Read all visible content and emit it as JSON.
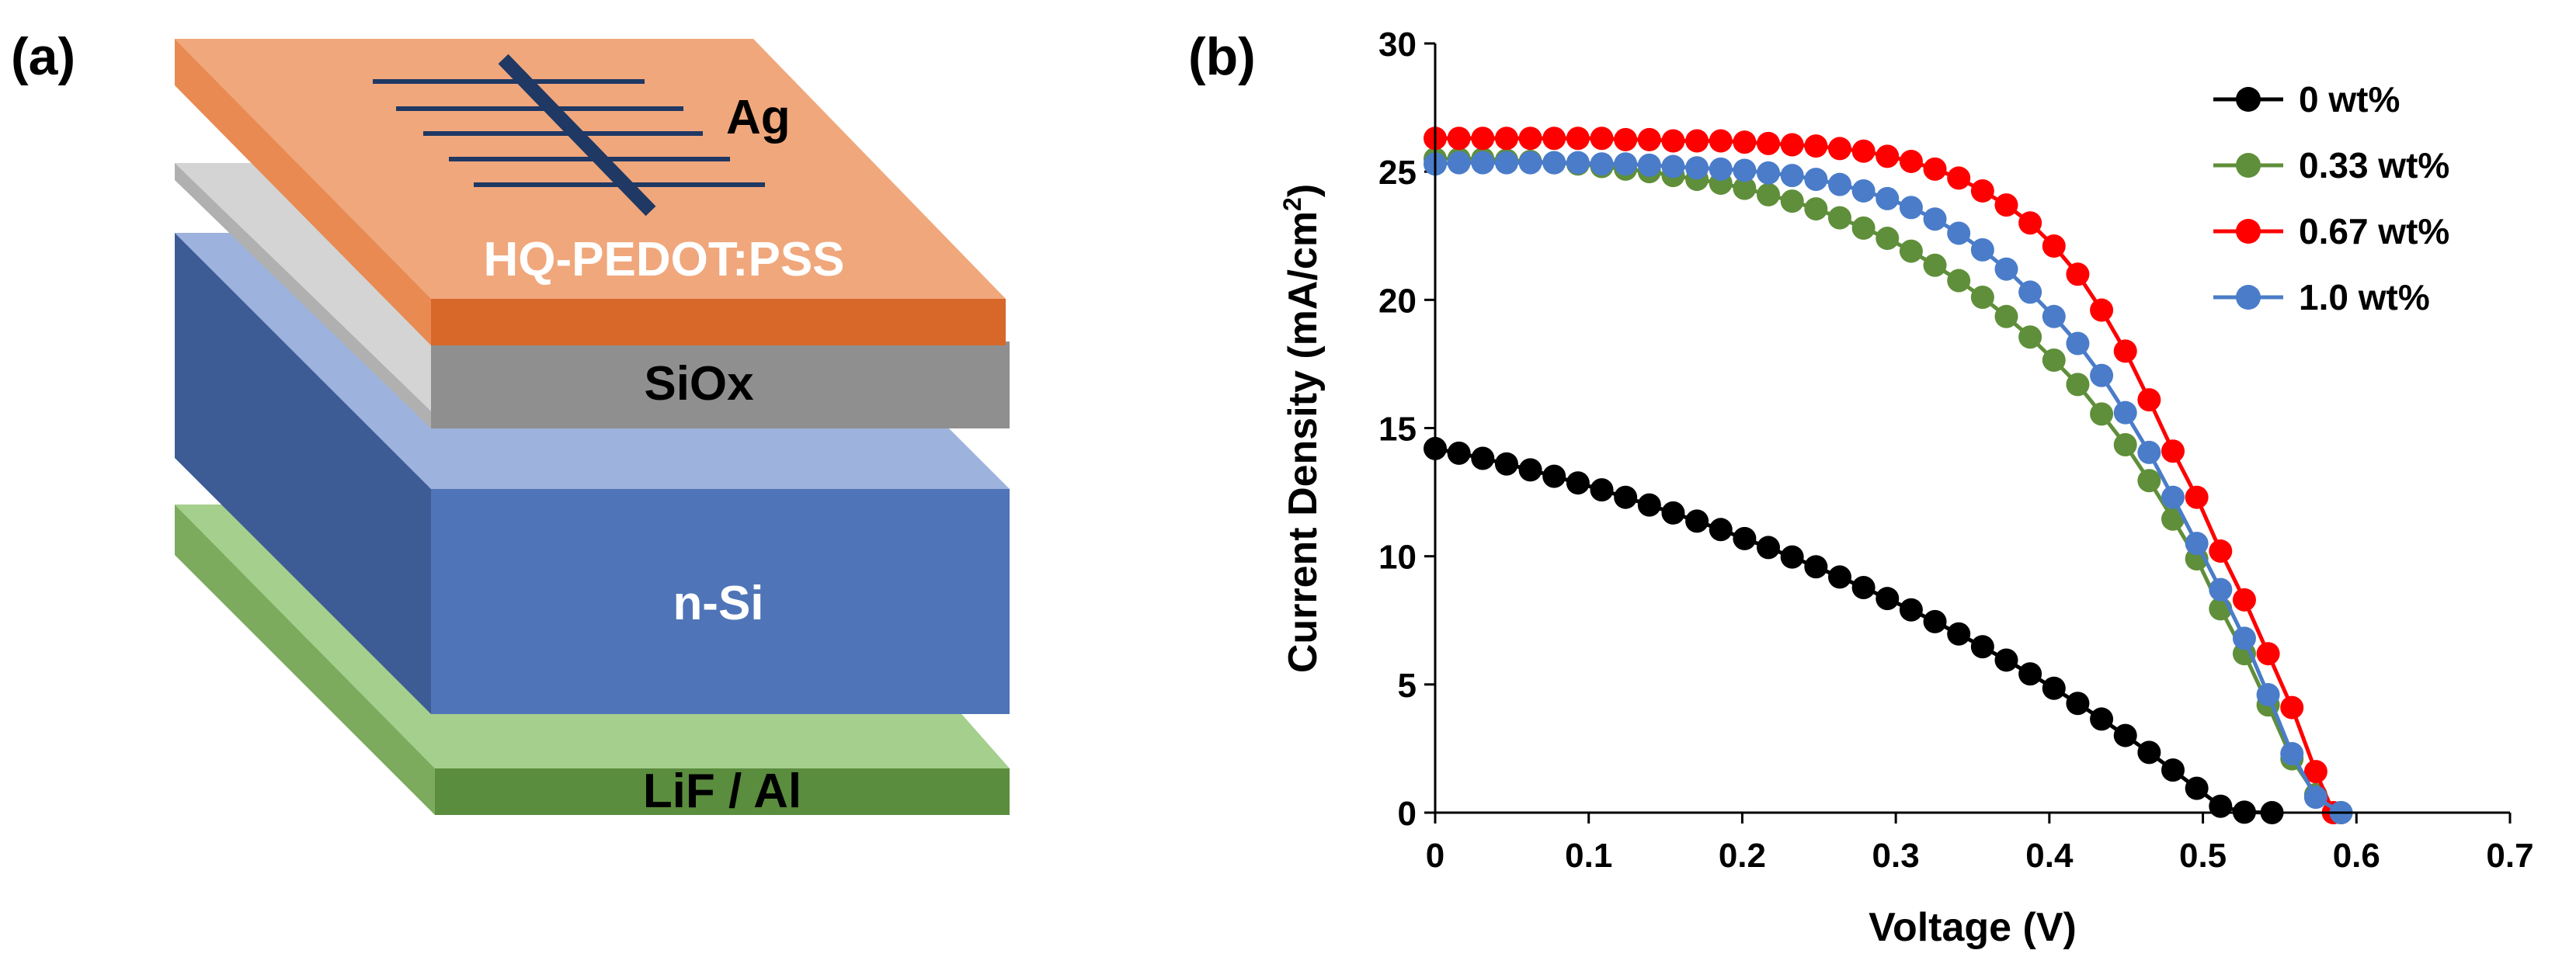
{
  "panels": {
    "a": {
      "label": "(a)"
    },
    "b": {
      "label": "(b)"
    }
  },
  "stack": {
    "layers": [
      {
        "name": "LiF / Al",
        "colors": {
          "front": "#5a8d3e",
          "top": "#a5cf8c",
          "side": "#7cab5d"
        }
      },
      {
        "name": "n-Si",
        "colors": {
          "front": "#4f74b8",
          "top": "#9db3dd",
          "side": "#3d5c96"
        }
      },
      {
        "name": "SiOx",
        "colors": {
          "front": "#8f8f8f",
          "top": "#d4d4d4",
          "side": "#b0b0b0"
        }
      },
      {
        "name": "HQ-PEDOT:PSS",
        "colors": {
          "front": "#d8682a",
          "top": "#f0a77c",
          "side": "#e88a52"
        }
      }
    ],
    "electrode": {
      "label": "Ag",
      "color": "#1f3864"
    }
  },
  "chart_data": {
    "type": "line",
    "title": "",
    "xlabel": "Voltage (V)",
    "ylabel_main": "Current Density (mA/cm",
    "ylabel_sup": "2",
    "ylabel_close": ")",
    "xlim": [
      0,
      0.7
    ],
    "ylim": [
      0,
      30
    ],
    "xticks": [
      "0",
      "0.1",
      "0.2",
      "0.3",
      "0.4",
      "0.5",
      "0.6",
      "0.7"
    ],
    "yticks": [
      "0",
      "5",
      "10",
      "15",
      "20",
      "25",
      "30"
    ],
    "grid": false,
    "legend_position": "top-right",
    "series": [
      {
        "name": "0 wt%",
        "color": "#000000",
        "x": [
          0,
          0.0155,
          0.031,
          0.0465,
          0.062,
          0.0775,
          0.093,
          0.1085,
          0.124,
          0.1395,
          0.155,
          0.1705,
          0.186,
          0.2015,
          0.217,
          0.2325,
          0.248,
          0.2635,
          0.279,
          0.2945,
          0.31,
          0.3255,
          0.341,
          0.3565,
          0.372,
          0.3875,
          0.403,
          0.4185,
          0.434,
          0.4495,
          0.465,
          0.4805,
          0.496,
          0.5115,
          0.527,
          0.545
        ],
        "y": [
          14.2,
          14.02,
          13.82,
          13.6,
          13.37,
          13.12,
          12.86,
          12.59,
          12.3,
          12,
          11.69,
          11.37,
          11.04,
          10.69,
          10.34,
          9.97,
          9.59,
          9.19,
          8.78,
          8.35,
          7.91,
          7.45,
          6.97,
          6.47,
          5.95,
          5.41,
          4.85,
          4.26,
          3.65,
          3.01,
          2.35,
          1.66,
          0.95,
          0.25,
          0.02,
          0
        ]
      },
      {
        "name": "0.33 wt%",
        "color": "#5f8f3a",
        "x": [
          0,
          0.0155,
          0.031,
          0.0465,
          0.062,
          0.0775,
          0.093,
          0.1085,
          0.124,
          0.1395,
          0.155,
          0.1705,
          0.186,
          0.2015,
          0.217,
          0.2325,
          0.248,
          0.2635,
          0.279,
          0.2945,
          0.31,
          0.3255,
          0.341,
          0.3565,
          0.372,
          0.3875,
          0.403,
          0.4185,
          0.434,
          0.4495,
          0.465,
          0.4805,
          0.496,
          0.5115,
          0.527,
          0.5425,
          0.558,
          0.5735,
          0.59
        ],
        "y": [
          25.5,
          25.5,
          25.5,
          25.45,
          25.4,
          25.35,
          25.3,
          25.2,
          25.1,
          25,
          24.85,
          24.7,
          24.55,
          24.35,
          24.1,
          23.85,
          23.55,
          23.2,
          22.8,
          22.4,
          21.9,
          21.35,
          20.75,
          20.1,
          19.35,
          18.55,
          17.65,
          16.7,
          15.55,
          14.35,
          12.95,
          11.45,
          9.9,
          7.95,
          6.2,
          4.2,
          2.1,
          0.7,
          0
        ]
      },
      {
        "name": "0.67 wt%",
        "color": "#ff0000",
        "x": [
          0,
          0.0155,
          0.031,
          0.0465,
          0.062,
          0.0775,
          0.093,
          0.1085,
          0.124,
          0.1395,
          0.155,
          0.1705,
          0.186,
          0.2015,
          0.217,
          0.2325,
          0.248,
          0.2635,
          0.279,
          0.2945,
          0.31,
          0.3255,
          0.341,
          0.3565,
          0.372,
          0.3875,
          0.403,
          0.4185,
          0.434,
          0.4495,
          0.465,
          0.4805,
          0.496,
          0.5115,
          0.527,
          0.5425,
          0.558,
          0.5735,
          0.585
        ],
        "y": [
          26.3,
          26.3,
          26.3,
          26.3,
          26.3,
          26.3,
          26.3,
          26.3,
          26.25,
          26.25,
          26.2,
          26.2,
          26.2,
          26.15,
          26.1,
          26.05,
          26,
          25.9,
          25.8,
          25.6,
          25.4,
          25.1,
          24.75,
          24.25,
          23.7,
          23,
          22.1,
          21,
          19.6,
          18,
          16.1,
          14.1,
          12.3,
          10.2,
          8.3,
          6.2,
          4.1,
          1.6,
          0
        ]
      },
      {
        "name": "1.0 wt%",
        "color": "#4a7cc9",
        "x": [
          0,
          0.0155,
          0.031,
          0.0465,
          0.062,
          0.0775,
          0.093,
          0.1085,
          0.124,
          0.1395,
          0.155,
          0.1705,
          0.186,
          0.2015,
          0.217,
          0.2325,
          0.248,
          0.2635,
          0.279,
          0.2945,
          0.31,
          0.3255,
          0.341,
          0.3565,
          0.372,
          0.3875,
          0.403,
          0.4185,
          0.434,
          0.4495,
          0.465,
          0.4805,
          0.496,
          0.5115,
          0.527,
          0.5425,
          0.558,
          0.5735,
          0.59
        ],
        "y": [
          25.3,
          25.35,
          25.35,
          25.35,
          25.35,
          25.35,
          25.35,
          25.3,
          25.3,
          25.25,
          25.2,
          25.15,
          25.1,
          25.05,
          24.95,
          24.85,
          24.7,
          24.5,
          24.25,
          23.95,
          23.6,
          23.15,
          22.6,
          21.95,
          21.2,
          20.3,
          19.35,
          18.3,
          17.05,
          15.6,
          14.05,
          12.3,
          10.5,
          8.7,
          6.8,
          4.6,
          2.3,
          0.6,
          0
        ]
      }
    ]
  }
}
